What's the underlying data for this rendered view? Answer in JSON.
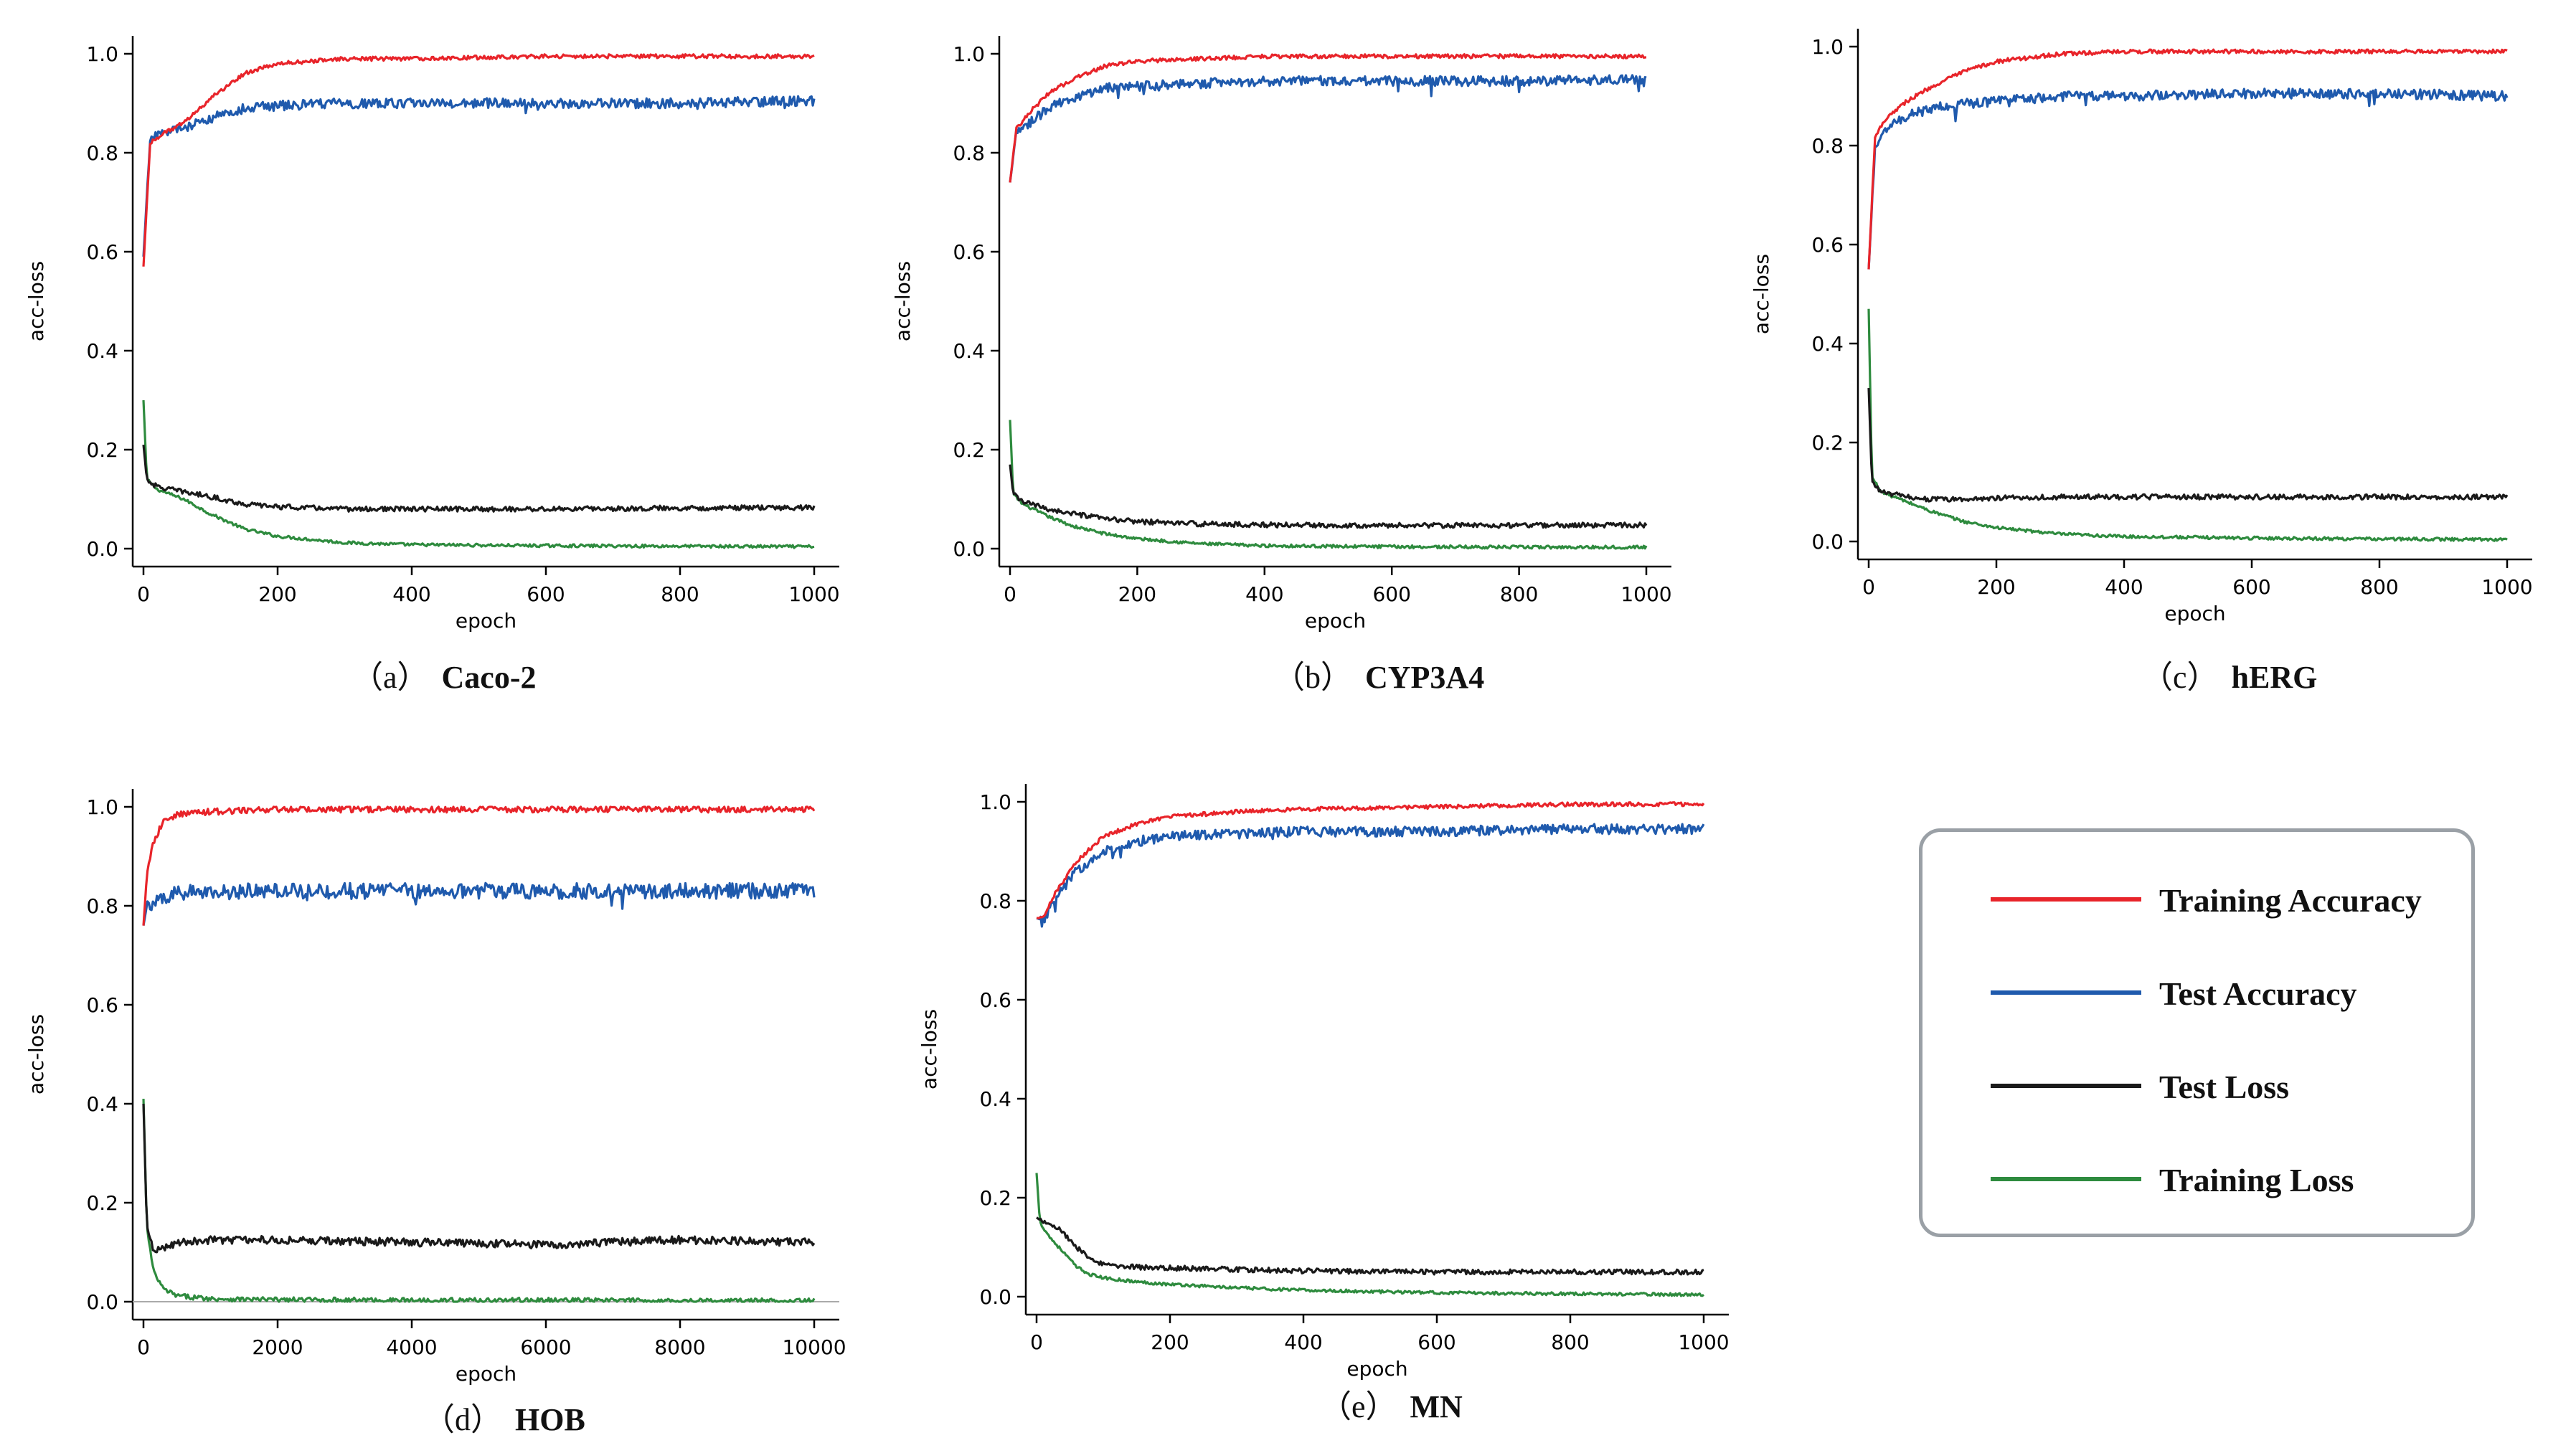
{
  "chart_data": [
    {
      "id": "a",
      "type": "line",
      "caption_letter": "（a）",
      "caption_name": "Caco-2",
      "xlabel": "epoch",
      "ylabel": "acc-loss",
      "xlim": [
        0,
        1000
      ],
      "ylim": [
        0,
        1.0
      ],
      "xticks": [
        0,
        200,
        400,
        600,
        800,
        1000
      ],
      "yticks": [
        0.0,
        0.2,
        0.4,
        0.6,
        0.8,
        1.0
      ],
      "ytick_labels": [
        "0.0",
        "0.2",
        "0.4",
        "0.6",
        "0.8",
        "1.0"
      ],
      "series": [
        {
          "name": "Training Accuracy",
          "x": [
            0,
            10,
            30,
            60,
            100,
            150,
            200,
            300,
            400,
            600,
            800,
            1000
          ],
          "values": [
            0.57,
            0.82,
            0.84,
            0.86,
            0.91,
            0.96,
            0.98,
            0.99,
            0.99,
            0.995,
            0.995,
            0.995
          ]
        },
        {
          "name": "Test Accuracy",
          "x": [
            0,
            10,
            30,
            60,
            100,
            150,
            200,
            300,
            400,
            600,
            800,
            1000
          ],
          "values": [
            0.59,
            0.83,
            0.84,
            0.85,
            0.87,
            0.89,
            0.895,
            0.9,
            0.9,
            0.9,
            0.9,
            0.905
          ]
        },
        {
          "name": "Test Loss",
          "x": [
            0,
            5,
            20,
            60,
            100,
            150,
            200,
            300,
            400,
            600,
            800,
            1000
          ],
          "values": [
            0.21,
            0.14,
            0.125,
            0.115,
            0.105,
            0.09,
            0.085,
            0.08,
            0.08,
            0.08,
            0.082,
            0.083
          ]
        },
        {
          "name": "Training Loss",
          "x": [
            0,
            5,
            20,
            60,
            100,
            150,
            200,
            300,
            400,
            600,
            800,
            1000
          ],
          "values": [
            0.3,
            0.14,
            0.12,
            0.1,
            0.07,
            0.04,
            0.025,
            0.012,
            0.008,
            0.006,
            0.005,
            0.004
          ]
        }
      ]
    },
    {
      "id": "b",
      "type": "line",
      "caption_letter": "（b）",
      "caption_name": "CYP3A4",
      "xlabel": "epoch",
      "ylabel": "acc-loss",
      "xlim": [
        0,
        1000
      ],
      "ylim": [
        0,
        1.0
      ],
      "xticks": [
        0,
        200,
        400,
        600,
        800,
        1000
      ],
      "yticks": [
        0.0,
        0.2,
        0.4,
        0.6,
        0.8,
        1.0
      ],
      "ytick_labels": [
        "0.0",
        "0.2",
        "0.4",
        "0.6",
        "0.8",
        "1.0"
      ],
      "series": [
        {
          "name": "Training Accuracy",
          "x": [
            0,
            10,
            30,
            60,
            100,
            150,
            200,
            300,
            400,
            600,
            800,
            1000
          ],
          "values": [
            0.74,
            0.85,
            0.88,
            0.92,
            0.95,
            0.975,
            0.985,
            0.99,
            0.995,
            0.995,
            0.995,
            0.995
          ]
        },
        {
          "name": "Test Accuracy",
          "x": [
            0,
            10,
            30,
            60,
            100,
            150,
            200,
            300,
            400,
            600,
            800,
            1000
          ],
          "values": [
            0.74,
            0.84,
            0.86,
            0.89,
            0.91,
            0.93,
            0.935,
            0.94,
            0.945,
            0.945,
            0.945,
            0.948
          ]
        },
        {
          "name": "Test Loss",
          "x": [
            0,
            5,
            20,
            60,
            100,
            150,
            200,
            300,
            400,
            600,
            800,
            1000
          ],
          "values": [
            0.17,
            0.11,
            0.095,
            0.08,
            0.07,
            0.06,
            0.055,
            0.05,
            0.048,
            0.047,
            0.047,
            0.048
          ]
        },
        {
          "name": "Training Loss",
          "x": [
            0,
            5,
            20,
            60,
            100,
            150,
            200,
            300,
            400,
            600,
            800,
            1000
          ],
          "values": [
            0.26,
            0.11,
            0.09,
            0.065,
            0.045,
            0.03,
            0.02,
            0.01,
            0.006,
            0.004,
            0.003,
            0.003
          ]
        }
      ]
    },
    {
      "id": "c",
      "type": "line",
      "caption_letter": "（c）",
      "caption_name": "hERG",
      "xlabel": "epoch",
      "ylabel": "acc-loss",
      "xlim": [
        0,
        1000
      ],
      "ylim": [
        0,
        1.0
      ],
      "xticks": [
        0,
        200,
        400,
        600,
        800,
        1000
      ],
      "yticks": [
        0.0,
        0.2,
        0.4,
        0.6,
        0.8,
        1.0
      ],
      "ytick_labels": [
        "0.0",
        "0.2",
        "0.4",
        "0.6",
        "0.8",
        "1.0"
      ],
      "series": [
        {
          "name": "Training Accuracy",
          "x": [
            0,
            10,
            30,
            60,
            100,
            150,
            200,
            300,
            400,
            600,
            800,
            1000
          ],
          "values": [
            0.55,
            0.82,
            0.86,
            0.89,
            0.92,
            0.95,
            0.97,
            0.985,
            0.99,
            0.99,
            0.99,
            0.99
          ]
        },
        {
          "name": "Test Accuracy",
          "x": [
            0,
            10,
            30,
            60,
            100,
            150,
            200,
            300,
            400,
            600,
            800,
            1000
          ],
          "values": [
            0.55,
            0.8,
            0.84,
            0.86,
            0.875,
            0.885,
            0.89,
            0.9,
            0.9,
            0.905,
            0.905,
            0.9
          ]
        },
        {
          "name": "Test Loss",
          "x": [
            0,
            5,
            20,
            60,
            100,
            150,
            200,
            300,
            400,
            600,
            800,
            1000
          ],
          "values": [
            0.31,
            0.12,
            0.1,
            0.09,
            0.085,
            0.085,
            0.088,
            0.09,
            0.09,
            0.09,
            0.09,
            0.09
          ]
        },
        {
          "name": "Training Loss",
          "x": [
            0,
            5,
            20,
            60,
            100,
            150,
            200,
            300,
            400,
            600,
            800,
            1000
          ],
          "values": [
            0.47,
            0.13,
            0.1,
            0.08,
            0.06,
            0.04,
            0.028,
            0.015,
            0.01,
            0.007,
            0.005,
            0.004
          ]
        }
      ]
    },
    {
      "id": "d",
      "type": "line",
      "caption_letter": "（d）",
      "caption_name": "HOB",
      "xlabel": "epoch",
      "ylabel": "acc-loss",
      "xlim": [
        0,
        10000
      ],
      "ylim": [
        0,
        1.0
      ],
      "xticks": [
        0,
        2000,
        4000,
        6000,
        8000,
        10000
      ],
      "yticks": [
        0.0,
        0.2,
        0.4,
        0.6,
        0.8,
        1.0
      ],
      "ytick_labels": [
        "0.0",
        "0.2",
        "0.4",
        "0.6",
        "0.8",
        "1.0"
      ],
      "series": [
        {
          "name": "Training Accuracy",
          "x": [
            0,
            50,
            150,
            300,
            500,
            1000,
            2000,
            4000,
            6000,
            8000,
            10000
          ],
          "values": [
            0.76,
            0.86,
            0.93,
            0.97,
            0.985,
            0.99,
            0.995,
            0.995,
            0.995,
            0.995,
            0.995
          ]
        },
        {
          "name": "Test Accuracy",
          "x": [
            0,
            50,
            150,
            300,
            500,
            1000,
            2000,
            4000,
            6000,
            8000,
            10000
          ],
          "values": [
            0.76,
            0.8,
            0.81,
            0.82,
            0.825,
            0.83,
            0.83,
            0.83,
            0.83,
            0.83,
            0.83
          ]
        },
        {
          "name": "Test Loss",
          "x": [
            0,
            50,
            150,
            300,
            500,
            1000,
            2000,
            4000,
            6000,
            8000,
            10000
          ],
          "values": [
            0.4,
            0.15,
            0.1,
            0.11,
            0.12,
            0.125,
            0.125,
            0.12,
            0.115,
            0.125,
            0.12
          ]
        },
        {
          "name": "Training Loss",
          "x": [
            0,
            50,
            150,
            300,
            500,
            1000,
            2000,
            4000,
            6000,
            8000,
            10000
          ],
          "values": [
            0.41,
            0.15,
            0.06,
            0.025,
            0.012,
            0.006,
            0.004,
            0.003,
            0.003,
            0.002,
            0.002
          ]
        }
      ]
    },
    {
      "id": "e",
      "type": "line",
      "caption_letter": "（e）",
      "caption_name": "MN",
      "xlabel": "epoch",
      "ylabel": "acc-loss",
      "xlim": [
        0,
        1000
      ],
      "ylim": [
        0,
        1.0
      ],
      "xticks": [
        0,
        200,
        400,
        600,
        800,
        1000
      ],
      "yticks": [
        0.0,
        0.2,
        0.4,
        0.6,
        0.8,
        1.0
      ],
      "ytick_labels": [
        "0.0",
        "0.2",
        "0.4",
        "0.6",
        "0.8",
        "1.0"
      ],
      "series": [
        {
          "name": "Training Accuracy",
          "x": [
            0,
            10,
            30,
            60,
            100,
            150,
            200,
            300,
            400,
            600,
            800,
            1000
          ],
          "values": [
            0.765,
            0.765,
            0.82,
            0.88,
            0.93,
            0.955,
            0.97,
            0.98,
            0.985,
            0.99,
            0.995,
            0.995
          ]
        },
        {
          "name": "Test Accuracy",
          "x": [
            0,
            10,
            30,
            60,
            100,
            150,
            200,
            300,
            400,
            600,
            800,
            1000
          ],
          "values": [
            0.765,
            0.76,
            0.81,
            0.86,
            0.9,
            0.92,
            0.93,
            0.935,
            0.94,
            0.94,
            0.945,
            0.945
          ]
        },
        {
          "name": "Test Loss",
          "x": [
            0,
            5,
            20,
            40,
            60,
            80,
            100,
            150,
            200,
            300,
            400,
            600,
            800,
            1000
          ],
          "values": [
            0.16,
            0.155,
            0.15,
            0.13,
            0.1,
            0.075,
            0.065,
            0.06,
            0.058,
            0.055,
            0.052,
            0.05,
            0.05,
            0.05
          ]
        },
        {
          "name": "Training Loss",
          "x": [
            0,
            5,
            20,
            40,
            60,
            80,
            100,
            150,
            200,
            300,
            400,
            600,
            800,
            1000
          ],
          "values": [
            0.25,
            0.15,
            0.12,
            0.09,
            0.06,
            0.045,
            0.038,
            0.03,
            0.025,
            0.018,
            0.013,
            0.008,
            0.006,
            0.004
          ]
        }
      ]
    }
  ],
  "legend": [
    {
      "label": "Training Accuracy",
      "color": "#e8242a"
    },
    {
      "label": "Test Accuracy",
      "color": "#1f5aad"
    },
    {
      "label": "Test Loss",
      "color": "#1a1a1a"
    },
    {
      "label": "Training Loss",
      "color": "#2e8b3e"
    }
  ],
  "series_colors": {
    "Training Accuracy": "#e8242a",
    "Test Accuracy": "#1f5aad",
    "Test Loss": "#1a1a1a",
    "Training Loss": "#2e8b3e"
  }
}
